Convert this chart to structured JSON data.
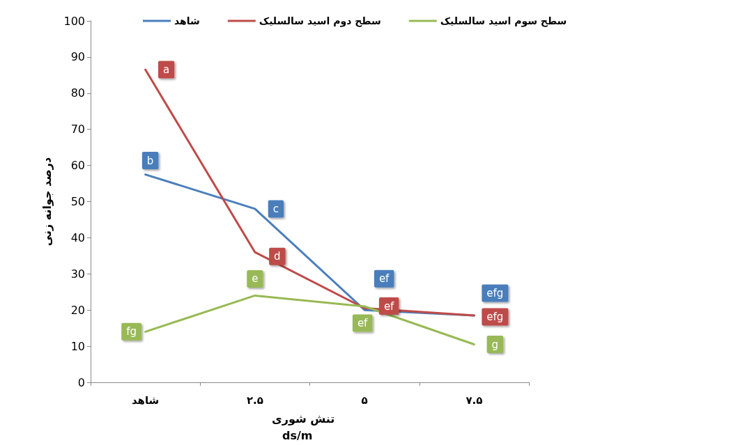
{
  "chart_data": {
    "type": "line",
    "xlabel": "تنش شوری\nds/m",
    "ylabel": "درصد جوانه زنی",
    "categories": [
      "شاهد",
      "۲.۵",
      "۵",
      "۷.۵"
    ],
    "series": [
      {
        "name": "شاهد",
        "color": "#4a7ebb",
        "values": [
          57.5,
          48,
          20,
          18.5
        ],
        "value_labels": [
          "b",
          "c",
          "ef",
          "efg"
        ]
      },
      {
        "name": "سطح دوم اسید سالسلیک",
        "color": "#be4b48",
        "values": [
          86.5,
          36,
          20.5,
          18.5
        ],
        "value_labels": [
          "a",
          "d",
          "ef",
          "efg"
        ]
      },
      {
        "name": "سطح سوم اسید سالسلیک",
        "color": "#98b954",
        "values": [
          14,
          24,
          21,
          10.5
        ],
        "value_labels": [
          "fg",
          "e",
          "ef",
          "g"
        ]
      }
    ],
    "ylim": [
      0,
      100
    ],
    "yticks": [
      0,
      10,
      20,
      30,
      40,
      50,
      60,
      70,
      80,
      90,
      100
    ],
    "grid": false,
    "legend": "top",
    "marker": "none",
    "line_style": "solid"
  }
}
